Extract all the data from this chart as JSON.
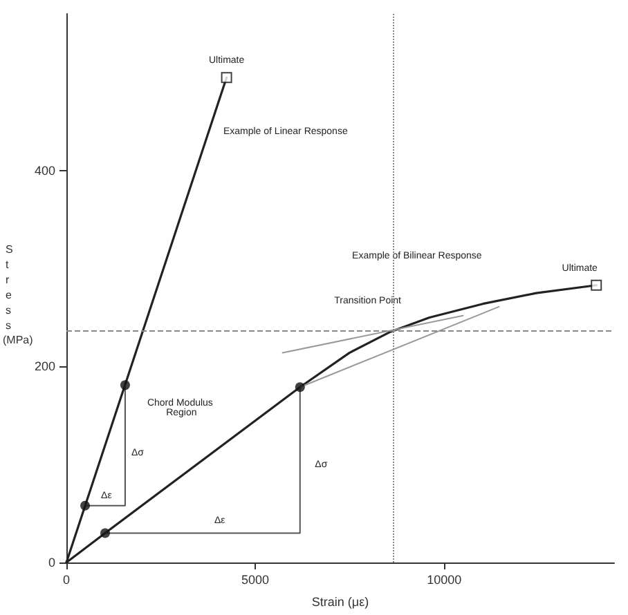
{
  "chart_data": {
    "type": "line",
    "xlabel": "Strain (με)",
    "ylabel": "Stress (MPa)",
    "xlim": [
      0,
      14500
    ],
    "ylim": [
      0,
      560
    ],
    "xticks": [
      0,
      5000,
      10000
    ],
    "yticks": [
      0,
      200,
      400
    ],
    "grid": false,
    "marker": "none",
    "series": [
      {
        "color": "#222222",
        "x": [
          0,
          4240
        ],
        "values": [
          0,
          495
        ]
      },
      {
        "color": "#222222",
        "x": [
          0,
          1025,
          6184,
          7491,
          8551,
          9611,
          11025,
          12438,
          14028
        ],
        "values": [
          0,
          30,
          179,
          214,
          235,
          250,
          264,
          275,
          283
        ]
      },
      {
        "color": "#999999",
        "x": [
          6184,
          11450
        ],
        "values": [
          179,
          261
        ]
      },
      {
        "color": "#999999",
        "x": [
          5724,
          10500
        ],
        "values": [
          214,
          252
        ]
      },
      {
        "color": "#555555",
        "x": [
          495,
          1555,
          1555
        ],
        "values": [
          58,
          58,
          181
        ]
      },
      {
        "color": "#555555",
        "x": [
          1025,
          6184,
          6184
        ],
        "values": [
          30,
          30,
          179
        ]
      },
      {
        "type": "scatter",
        "marker": "circle",
        "color": "#111111",
        "x": [
          495,
          1555,
          1025,
          6184
        ],
        "values": [
          58,
          181,
          30,
          179
        ]
      },
      {
        "type": "scatter",
        "marker": "square",
        "color": "#111111",
        "x": [
          4240,
          14028
        ],
        "values": [
          495,
          283
        ]
      }
    ],
    "ref_lines": [
      {
        "axis": "y",
        "value": 236,
        "line_style": "dashed",
        "color": "#888888"
      },
      {
        "axis": "x",
        "value": 8650,
        "line_style": "dotted",
        "color": "#888888"
      }
    ],
    "annotations": [
      {
        "text": "Ultimate",
        "x": 4240,
        "y": 495
      },
      {
        "text": "Ultimate",
        "x": 14028,
        "y": 283
      },
      "Transition Point",
      "Example of Linear Response",
      "Example of Bilinear Response",
      "Chord Modulus Region",
      "Δσ",
      "Δε",
      "Δε",
      "Δσ"
    ]
  }
}
